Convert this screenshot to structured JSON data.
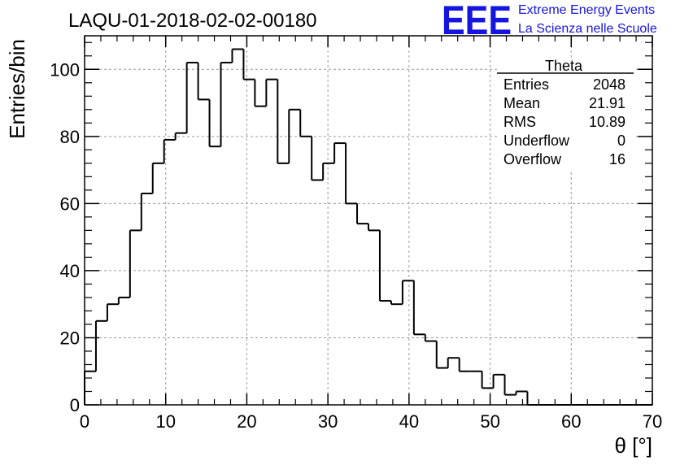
{
  "logo": {
    "mark": "EEE",
    "line1": "Extreme Energy Events",
    "line2": "La Scienza nelle Scuole",
    "color": "#1515e0"
  },
  "stats": {
    "name": "Theta",
    "rows": [
      {
        "label": "Entries",
        "value": "2048"
      },
      {
        "label": "Mean",
        "value": "21.91"
      },
      {
        "label": "RMS",
        "value": "10.89"
      },
      {
        "label": "Underflow",
        "value": "0"
      },
      {
        "label": "Overflow",
        "value": "16"
      }
    ]
  },
  "chart_data": {
    "type": "bar",
    "title": "LAQU-01-2018-02-02-00180",
    "xlabel": "θ [°]",
    "ylabel": "Entries/bin",
    "xlim": [
      0,
      70
    ],
    "ylim": [
      0,
      110
    ],
    "grid": true,
    "legend": "top-right",
    "bin_width": 1.4,
    "xticks": [
      0,
      10,
      20,
      30,
      40,
      50,
      60,
      70
    ],
    "yticks": [
      0,
      20,
      40,
      60,
      80,
      100
    ],
    "values": [
      10,
      25,
      30,
      32,
      52,
      63,
      72,
      79,
      81,
      102,
      91,
      77,
      102,
      106,
      97,
      89,
      97,
      72,
      88,
      80,
      67,
      72,
      78,
      60,
      54,
      52,
      31,
      30,
      37,
      21,
      19,
      11,
      14,
      10,
      10,
      5,
      9,
      3,
      4,
      0,
      0,
      0,
      0,
      0,
      0,
      0,
      0,
      0,
      0,
      0
    ]
  }
}
